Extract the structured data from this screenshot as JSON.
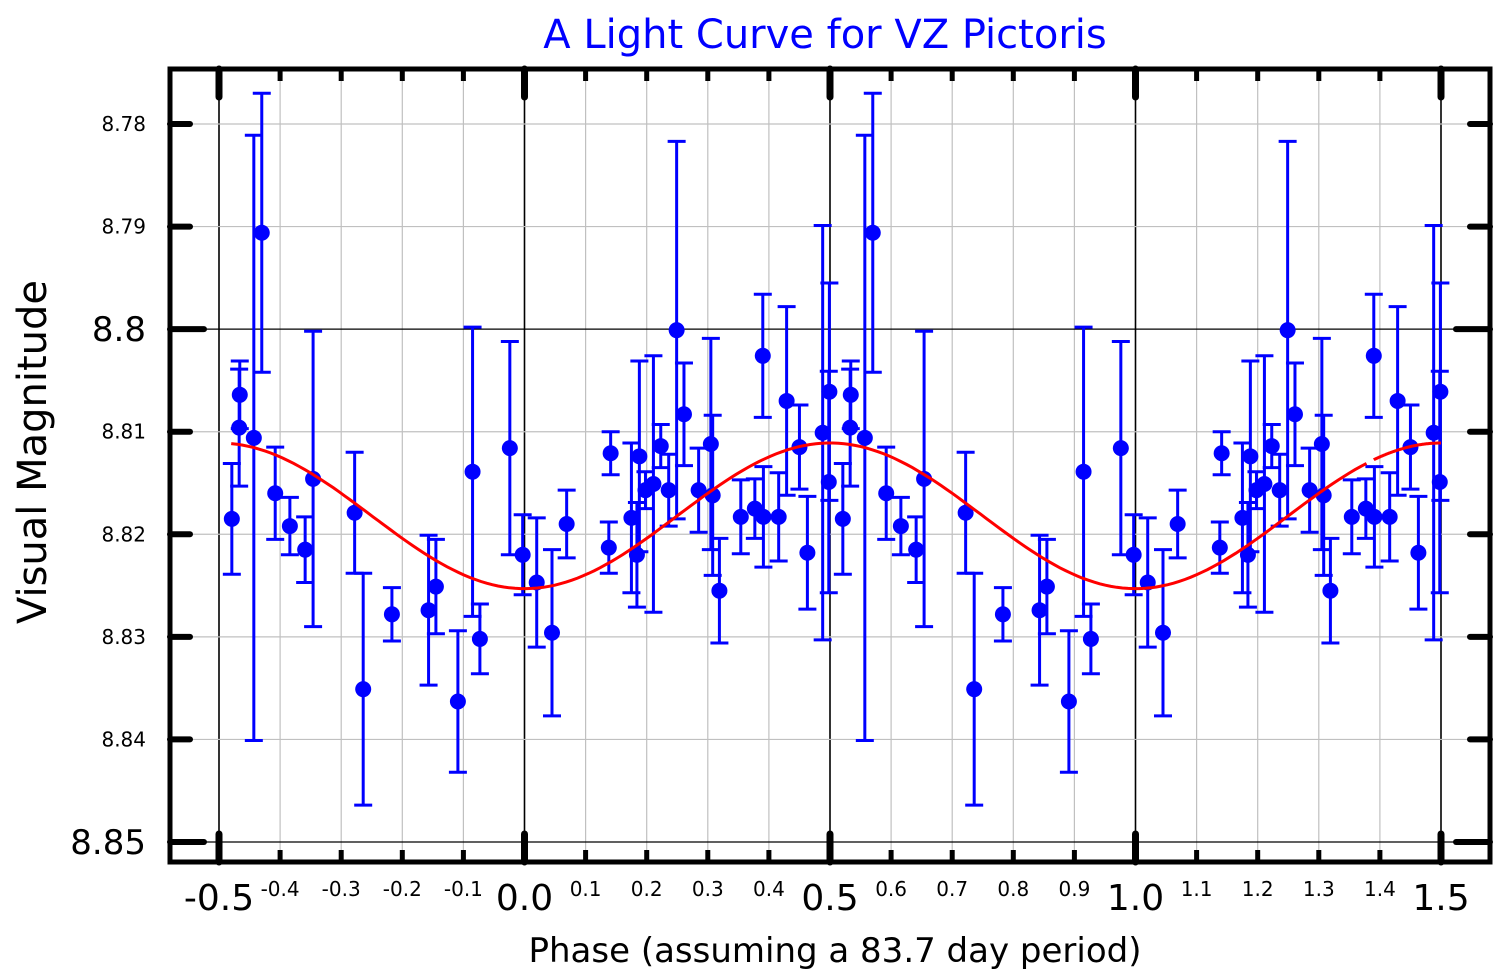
{
  "chart_data": {
    "type": "scatter",
    "title": "A Light Curve for VZ Pictoris",
    "xlabel": "Phase (assuming a 83.7 day period)",
    "ylabel": "Visual Magnitude",
    "xlim": [
      -0.5,
      1.5
    ],
    "ylim": [
      8.85,
      8.78
    ],
    "y_inverted": true,
    "grid": true,
    "legend": "none",
    "x_ticks_major": [
      {
        "value": -0.5,
        "label": "-0.5"
      },
      {
        "value": 0.0,
        "label": "0.0"
      },
      {
        "value": 0.5,
        "label": "0.5"
      },
      {
        "value": 1.0,
        "label": "1.0"
      },
      {
        "value": 1.5,
        "label": "1.5"
      }
    ],
    "x_ticks_minor": [
      {
        "value": -0.4,
        "label": "-0.4"
      },
      {
        "value": -0.3,
        "label": "-0.3"
      },
      {
        "value": -0.2,
        "label": "-0.2"
      },
      {
        "value": -0.1,
        "label": "-0.1"
      },
      {
        "value": 0.1,
        "label": "0.1"
      },
      {
        "value": 0.2,
        "label": "0.2"
      },
      {
        "value": 0.3,
        "label": "0.3"
      },
      {
        "value": 0.4,
        "label": "0.4"
      },
      {
        "value": 0.6,
        "label": "0.6"
      },
      {
        "value": 0.7,
        "label": "0.7"
      },
      {
        "value": 0.8,
        "label": "0.8"
      },
      {
        "value": 0.9,
        "label": "0.9"
      },
      {
        "value": 1.1,
        "label": "1.1"
      },
      {
        "value": 1.2,
        "label": "1.2"
      },
      {
        "value": 1.3,
        "label": "1.3"
      },
      {
        "value": 1.4,
        "label": "1.4"
      }
    ],
    "y_ticks": [
      {
        "value": 8.78,
        "label": "8.78",
        "major": false
      },
      {
        "value": 8.79,
        "label": "8.79",
        "major": false
      },
      {
        "value": 8.8,
        "label": "8.8",
        "major": true
      },
      {
        "value": 8.81,
        "label": "8.81",
        "major": false
      },
      {
        "value": 8.82,
        "label": "8.82",
        "major": false
      },
      {
        "value": 8.83,
        "label": "8.83",
        "major": false
      },
      {
        "value": 8.84,
        "label": "8.84",
        "major": false
      },
      {
        "value": 8.85,
        "label": "8.85",
        "major": true
      }
    ],
    "series": [
      {
        "name": "Observations",
        "color": "#0000ff",
        "marker": "circle",
        "repeat_phase_offsets": [
          0,
          1
        ],
        "points": [
          {
            "phase": -0.479,
            "mag": 8.8185,
            "err": 0.0054
          },
          {
            "phase": -0.466,
            "mag": 8.8064,
            "err": 0.0033
          },
          {
            "phase": -0.467,
            "mag": 8.8096,
            "err": 0.0057
          },
          {
            "phase": -0.443,
            "mag": 8.8106,
            "err": 0.0295
          },
          {
            "phase": -0.43,
            "mag": 8.7906,
            "err": 0.0136
          },
          {
            "phase": -0.408,
            "mag": 8.816,
            "err": 0.0045
          },
          {
            "phase": -0.384,
            "mag": 8.8192,
            "err": 0.0028
          },
          {
            "phase": -0.359,
            "mag": 8.8215,
            "err": 0.0032
          },
          {
            "phase": -0.346,
            "mag": 8.8146,
            "err": 0.0144
          },
          {
            "phase": -0.278,
            "mag": 8.8179,
            "err": 0.0059
          },
          {
            "phase": -0.264,
            "mag": 8.8351,
            "err": 0.0113
          },
          {
            "phase": -0.217,
            "mag": 8.8278,
            "err": 0.0026
          },
          {
            "phase": -0.157,
            "mag": 8.8274,
            "err": 0.0073
          },
          {
            "phase": -0.145,
            "mag": 8.8251,
            "err": 0.0046
          },
          {
            "phase": -0.109,
            "mag": 8.8363,
            "err": 0.0069
          },
          {
            "phase": -0.085,
            "mag": 8.8139,
            "err": 0.0141
          },
          {
            "phase": -0.073,
            "mag": 8.8302,
            "err": 0.0034
          },
          {
            "phase": -0.024,
            "mag": 8.8116,
            "err": 0.0104
          },
          {
            "phase": -0.003,
            "mag": 8.822,
            "err": 0.0039
          },
          {
            "phase": 0.02,
            "mag": 8.8247,
            "err": 0.0063
          },
          {
            "phase": 0.045,
            "mag": 8.8296,
            "err": 0.0081
          },
          {
            "phase": 0.069,
            "mag": 8.819,
            "err": 0.0033
          },
          {
            "phase": 0.138,
            "mag": 8.8213,
            "err": 0.0025
          },
          {
            "phase": 0.141,
            "mag": 8.8121,
            "err": 0.0021
          },
          {
            "phase": 0.175,
            "mag": 8.8184,
            "err": 0.0073
          },
          {
            "phase": 0.184,
            "mag": 8.822,
            "err": 0.0051
          },
          {
            "phase": 0.188,
            "mag": 8.8124,
            "err": 0.0093
          },
          {
            "phase": 0.198,
            "mag": 8.8157,
            "err": 0.0018
          },
          {
            "phase": 0.211,
            "mag": 8.8151,
            "err": 0.0125
          },
          {
            "phase": 0.223,
            "mag": 8.8114,
            "err": 0.0021
          },
          {
            "phase": 0.236,
            "mag": 8.8157,
            "err": 0.0035
          },
          {
            "phase": 0.249,
            "mag": 8.8001,
            "err": 0.0184
          },
          {
            "phase": 0.261,
            "mag": 8.8083,
            "err": 0.005
          },
          {
            "phase": 0.285,
            "mag": 8.8157,
            "err": 0.0041
          },
          {
            "phase": 0.305,
            "mag": 8.8112,
            "err": 0.0103
          },
          {
            "phase": 0.308,
            "mag": 8.8162,
            "err": 0.0078
          },
          {
            "phase": 0.319,
            "mag": 8.8255,
            "err": 0.0051
          },
          {
            "phase": 0.354,
            "mag": 8.8183,
            "err": 0.0036
          },
          {
            "phase": 0.377,
            "mag": 8.8175,
            "err": 0.0029
          },
          {
            "phase": 0.39,
            "mag": 8.8026,
            "err": 0.006
          },
          {
            "phase": 0.391,
            "mag": 8.8183,
            "err": 0.0049
          },
          {
            "phase": 0.416,
            "mag": 8.8183,
            "err": 0.0043
          },
          {
            "phase": 0.429,
            "mag": 8.807,
            "err": 0.0092
          },
          {
            "phase": 0.45,
            "mag": 8.8115,
            "err": 0.0041
          },
          {
            "phase": 0.463,
            "mag": 8.8218,
            "err": 0.0055
          },
          {
            "phase": 0.488,
            "mag": 8.8101,
            "err": 0.0202
          },
          {
            "phase": 0.498,
            "mag": 8.8149,
            "err": 0.0108
          },
          {
            "phase": 0.499,
            "mag": 8.8061,
            "err": 0.0106
          }
        ]
      },
      {
        "name": "Sinusoidal fit",
        "type": "line",
        "color": "#ff0000",
        "model": "mag = mean - amplitude * cos(2*pi*(phase - 0.5))",
        "mean": 8.8182,
        "amplitude": 0.0071,
        "phase_range": [
          -0.48,
          1.5
        ],
        "gap_phase_range": [
          1.378,
          1.39
        ]
      }
    ]
  }
}
